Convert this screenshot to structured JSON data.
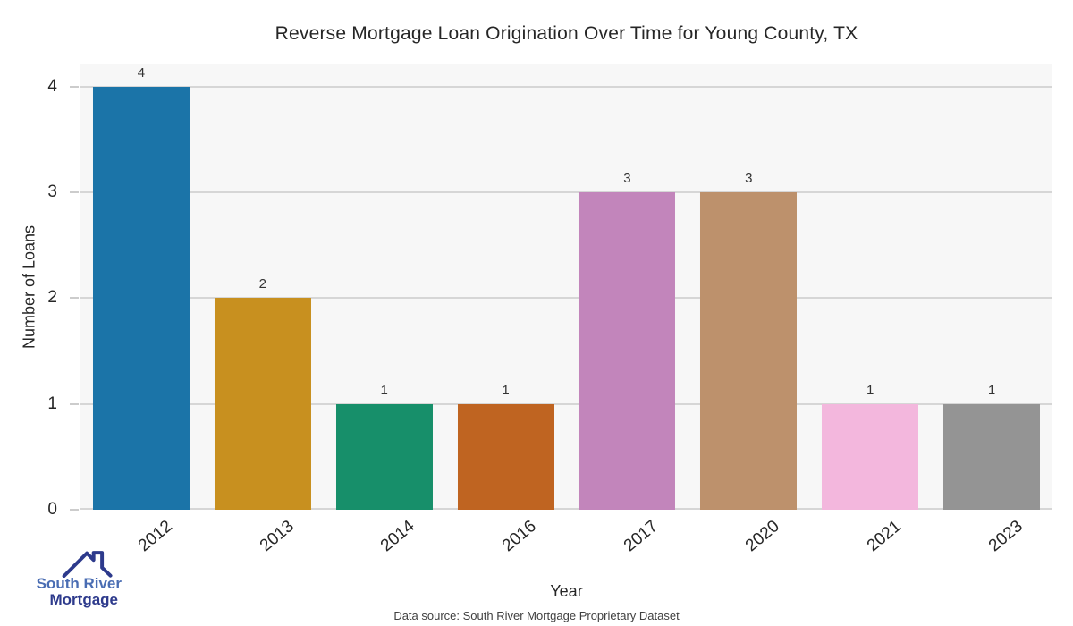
{
  "chart_data": {
    "type": "bar",
    "title": "Reverse Mortgage Loan Origination Over Time for Young County, TX",
    "xlabel": "Year",
    "ylabel": "Number of Loans",
    "categories": [
      "2012",
      "2013",
      "2014",
      "2016",
      "2017",
      "2020",
      "2021",
      "2023"
    ],
    "values": [
      4,
      2,
      1,
      1,
      3,
      3,
      1,
      1
    ],
    "bar_colors": [
      "#1b74a8",
      "#c8901f",
      "#178f6a",
      "#bf6421",
      "#c285bb",
      "#bd916c",
      "#f3b7dd",
      "#949494"
    ],
    "yticks": [
      0,
      1,
      2,
      3,
      4
    ],
    "ylim": [
      0,
      4.21
    ],
    "grid": true,
    "legend": false,
    "plot_bg_color": "#f7f7f7",
    "grid_color": "#d6d6d6"
  },
  "footer": {
    "source_text": "Data source: South River Mortgage Proprietary Dataset"
  },
  "logo": {
    "line1": "South River",
    "line2": "Mortgage",
    "icon": "house-roof-icon",
    "icon_color": "#2d3a8c",
    "line1_color": "#4a6db3",
    "line2_color": "#2d3a8c"
  }
}
